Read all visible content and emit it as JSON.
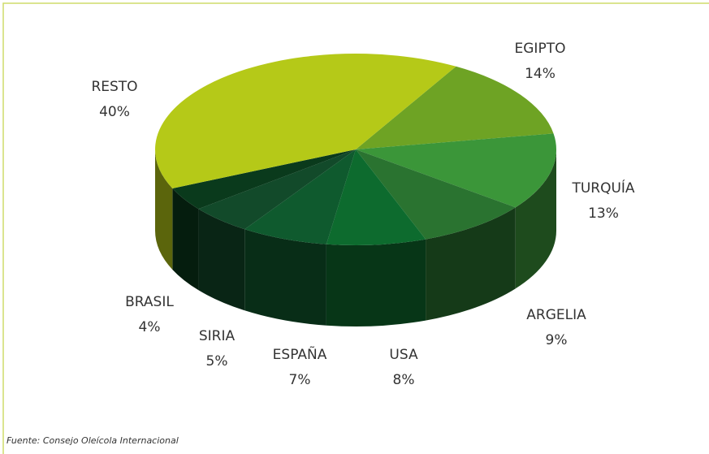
{
  "chart_data": {
    "type": "pie3d",
    "categories": [
      "EGIPTO",
      "TURQUÍA",
      "ARGELIA",
      "USA",
      "ESPAÑA",
      "SIRIA",
      "BRASIL",
      "RESTO"
    ],
    "values": [
      14,
      13,
      9,
      8,
      7,
      5,
      4,
      40
    ],
    "value_labels": [
      "14%",
      "13%",
      "9%",
      "8%",
      "7%",
      "5%",
      "4%",
      "40%"
    ],
    "colors": [
      "#6ea324",
      "#3b9639",
      "#2a7330",
      "#0d6b2e",
      "#0f5a2e",
      "#124a2a",
      "#0a3a1c",
      "#b5c918"
    ],
    "source": "Fuente: Consejo Oleícola Internacional"
  }
}
